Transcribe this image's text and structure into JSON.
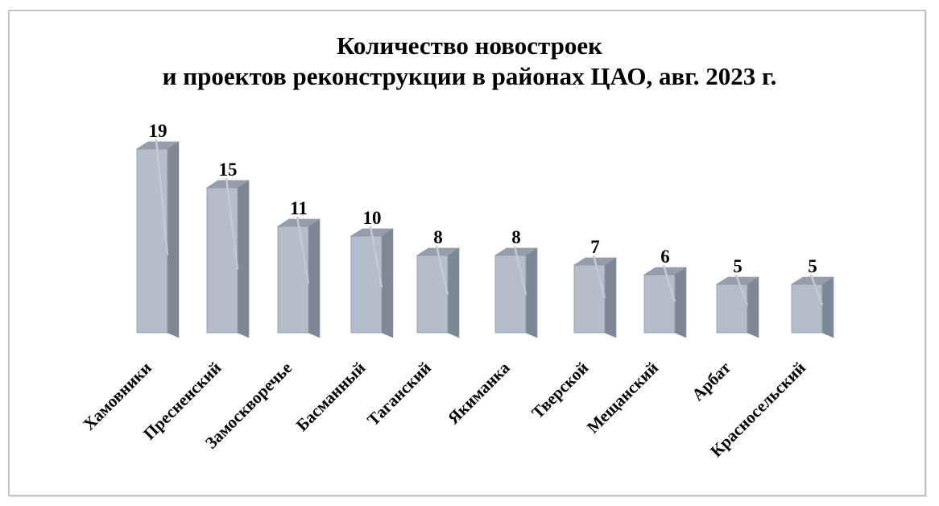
{
  "title": {
    "line1": "Количество новостроек",
    "line2": "и проектов реконструкции в районах ЦАО, авг. 2023 г."
  },
  "chart_data": {
    "type": "bar",
    "style": "3d-column",
    "title": "Количество новостроек и проектов реконструкции в районах ЦАО, авг. 2023 г.",
    "categories": [
      "Хамовники",
      "Пресненский",
      "Замоскворечье",
      "Басманный",
      "Таганский",
      "Якиманка",
      "Тверской",
      "Мещанский",
      "Арбат",
      "Красносельский"
    ],
    "values": [
      19,
      15,
      11,
      10,
      8,
      8,
      7,
      6,
      5,
      5
    ],
    "xlabel": "",
    "ylabel": "",
    "ylim": [
      0,
      20
    ],
    "grid": false,
    "legend_position": "none",
    "data_labels": "above-bars",
    "category_label_rotation_deg": 45
  },
  "colors": {
    "background": "#ffffff",
    "border": "#c6c6c6",
    "text": "#000000",
    "bar_front": "#b4bdcc",
    "bar_top": "#949eac",
    "bar_side": "#7e8795",
    "bar_edge": "#8c96a4",
    "leader_line": "#c6cacf"
  }
}
